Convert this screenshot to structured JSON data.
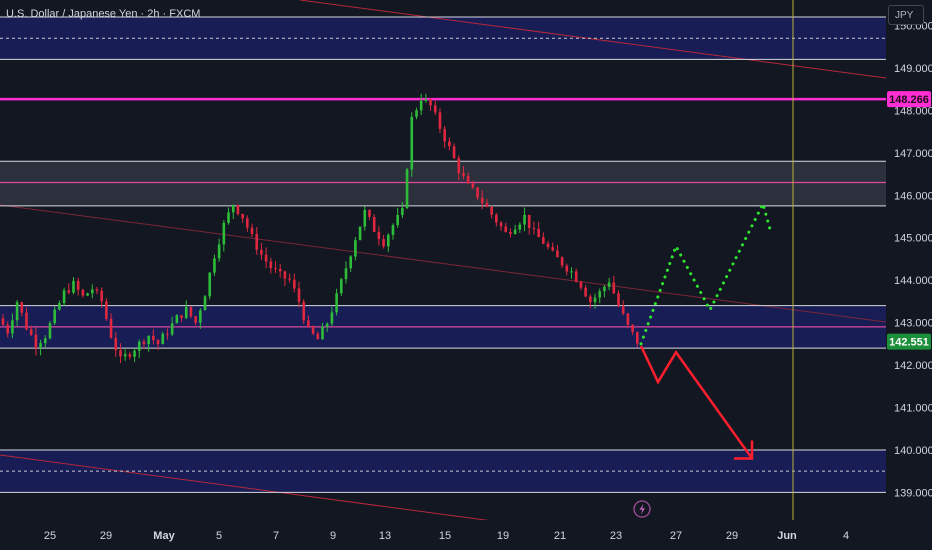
{
  "header": {
    "symbol_title": "U.S. Dollar / Japanese Yen · 2h · FXCM",
    "currency_label": "JPY"
  },
  "colors": {
    "background": "#131722",
    "up": "#2ebd38",
    "down": "#e0273f",
    "zone_fill": "#1a1f5e",
    "resistance_line": "#ff2ed2",
    "forecast_down": "#ff1e2d",
    "forecast_up": "#2ee62e",
    "current_price_badge": "#1b8f3a"
  },
  "chart_data": {
    "type": "candlestick",
    "title": "U.S. Dollar / Japanese Yen · 2h · FXCM",
    "y_axis": {
      "side": "right",
      "range": [
        138.35,
        150.6
      ],
      "ticks": [
        139.0,
        140.0,
        141.0,
        142.0,
        143.0,
        144.0,
        145.0,
        146.0,
        147.0,
        148.0,
        149.0,
        150.0
      ],
      "tick_labels": [
        "139.000",
        "140.000",
        "141.000",
        "142.000",
        "143.000",
        "144.000",
        "145.000",
        "146.000",
        "147.000",
        "148.000",
        "149.000",
        "150.000"
      ]
    },
    "x_axis": {
      "tick_labels": [
        "25",
        "29",
        "May",
        "5",
        "7",
        "9",
        "13",
        "15",
        "19",
        "21",
        "23",
        "27",
        "29",
        "Jun",
        "4"
      ],
      "bold_labels": [
        "May",
        "Jun"
      ]
    },
    "price_badges": [
      {
        "label": "148.266",
        "value": 148.266,
        "kind": "level"
      },
      {
        "label": "142.551",
        "value": 142.551,
        "kind": "current"
      }
    ],
    "horizontal_levels": [
      {
        "value": 150.2,
        "style": "solid"
      },
      {
        "value": 149.7,
        "style": "dashed"
      },
      {
        "value": 149.2,
        "style": "solid"
      },
      {
        "value": 148.266,
        "style": "resistance"
      },
      {
        "value": 146.8,
        "style": "solid"
      },
      {
        "value": 146.3,
        "style": "pink"
      },
      {
        "value": 145.75,
        "style": "solid"
      },
      {
        "value": 143.4,
        "style": "solid"
      },
      {
        "value": 142.9,
        "style": "pink"
      },
      {
        "value": 142.4,
        "style": "solid"
      },
      {
        "value": 140.0,
        "style": "solid"
      },
      {
        "value": 139.5,
        "style": "dashed"
      },
      {
        "value": 139.0,
        "style": "solid"
      }
    ],
    "zones": [
      {
        "from": 149.2,
        "to": 150.2,
        "shade": "blue"
      },
      {
        "from": 145.75,
        "to": 146.8,
        "shade": "gray"
      },
      {
        "from": 142.4,
        "to": 143.4,
        "shade": "blue"
      },
      {
        "from": 139.0,
        "to": 140.0,
        "shade": "blue"
      }
    ],
    "price_path": [
      143.1,
      142.8,
      143.5,
      142.9,
      142.5,
      142.7,
      143.2,
      143.7,
      143.9,
      143.6,
      143.8,
      143.5,
      142.7,
      142.1,
      142.3,
      142.5,
      142.7,
      142.5,
      142.8,
      143.1,
      143.3,
      143.0,
      143.7,
      144.6,
      145.3,
      145.8,
      145.5,
      145.0,
      144.6,
      144.3,
      144.1,
      144.0,
      143.5,
      142.8,
      142.6,
      143.0,
      143.6,
      144.3,
      145.0,
      145.6,
      145.2,
      144.9,
      145.3,
      145.6,
      147.8,
      148.3,
      148.1,
      147.6,
      147.1,
      146.6,
      146.2,
      146.0,
      145.7,
      145.4,
      145.1,
      145.3,
      145.5,
      145.1,
      144.9,
      144.6,
      144.4,
      144.2,
      143.9,
      143.5,
      143.7,
      144.0,
      143.4,
      142.9,
      142.551
    ],
    "scenario_down": [
      {
        "date": "May 23",
        "price": 142.45
      },
      {
        "date": "May 24",
        "price": 141.6
      },
      {
        "date": "May 26",
        "price": 142.3
      },
      {
        "date": "May 30",
        "price": 139.8
      }
    ],
    "scenario_up": [
      {
        "date": "May 23",
        "price": 142.5
      },
      {
        "date": "May 26",
        "price": 144.8
      },
      {
        "date": "May 28",
        "price": 143.3
      },
      {
        "date": "May 31",
        "price": 145.8
      },
      {
        "date": "Jun 1",
        "price": 145.2
      }
    ]
  },
  "widgets": {
    "lightning_icon": "lightning-icon"
  }
}
